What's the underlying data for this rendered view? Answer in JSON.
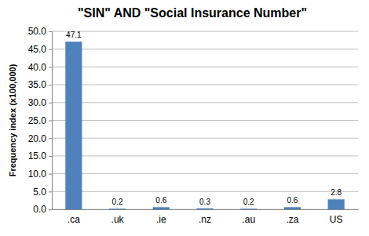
{
  "chart_data": {
    "type": "bar",
    "title": "\"SIN\" AND \"Social Insurance Number\"",
    "y_label": "Frequency index (x100,000)",
    "categories": [
      ".ca",
      ".uk",
      ".ie",
      ".nz",
      ".au",
      ".za",
      "US"
    ],
    "values": [
      47.1,
      0.2,
      0.6,
      0.3,
      0.2,
      0.6,
      2.8
    ],
    "color": "#4f81bd",
    "ylim": [
      0,
      50
    ],
    "yticks": [
      {
        "value": 0,
        "label": "0.0"
      },
      {
        "value": 5,
        "label": "5.0"
      },
      {
        "value": 10,
        "label": "10.0"
      },
      {
        "value": 15,
        "label": "15.0"
      },
      {
        "value": 20,
        "label": "20.0"
      },
      {
        "value": 25,
        "label": "25.0"
      },
      {
        "value": 30,
        "label": "30.0"
      },
      {
        "value": 35,
        "label": "35.0"
      },
      {
        "value": 40,
        "label": "40.0"
      },
      {
        "value": 45,
        "label": "45.0"
      },
      {
        "value": 50,
        "label": "50.0"
      }
    ],
    "grid": true,
    "data_labels": true
  }
}
